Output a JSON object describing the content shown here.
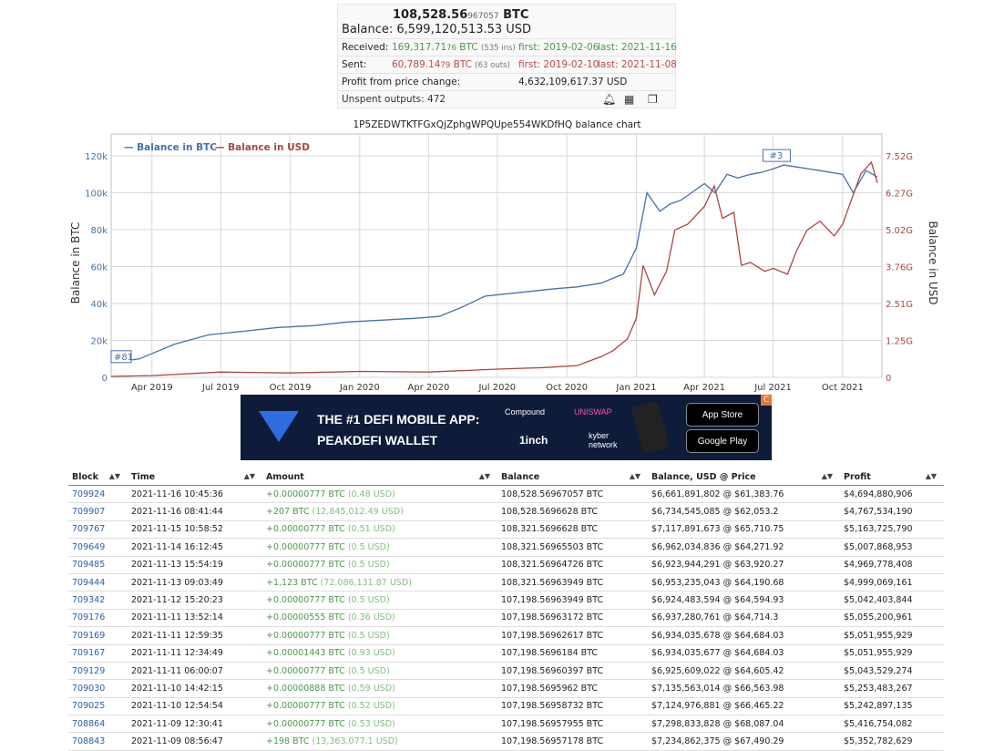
{
  "summary": {
    "balance_btc_main": "108,528.56",
    "balance_btc_dec": "967057",
    "balance_btc_unit": "BTC",
    "balance_usd": "Balance: 6,599,120,513.53 USD",
    "received_label": "Received:",
    "received_main": "169,317.71",
    "received_dec": "76",
    "received_unit": " BTC",
    "received_ins": "(535 ins)",
    "received_first": "first: 2019-02-06",
    "received_last": "last: 2021-11-16",
    "sent_label": "Sent:",
    "sent_main": "60,789.14",
    "sent_dec": "79",
    "sent_unit": " BTC",
    "sent_outs": "(63 outs)",
    "sent_first": "first: 2019-02-10",
    "sent_last": "last: 2021-11-08",
    "profit_label": "Profit from price change:",
    "profit_value": "4,632,109,617.37 USD",
    "unspent": "Unspent outputs: 472",
    "icons": [
      "bell-icon",
      "qr-code-icon",
      "copy-icon"
    ]
  },
  "chart_title": "1P5ZEDWTKTFGxQjZphgWPQUpe554WKDfHQ balance chart",
  "chart_data": {
    "type": "line",
    "legend": [
      "Balance in BTC",
      "Balance in USD"
    ],
    "legend_position": "top-left",
    "ylabel_left": "Balance in BTC",
    "ylabel_right": "Balance in USD",
    "yticks_left": [
      "0",
      "20k",
      "40k",
      "60k",
      "80k",
      "100k",
      "120k"
    ],
    "yticks_right": [
      "0",
      "1.25G",
      "2.51G",
      "3.76G",
      "5.02G",
      "6.27G",
      "7.52G"
    ],
    "xticks": [
      "Apr 2019",
      "Jul 2019",
      "Oct 2019",
      "Jan 2020",
      "Apr 2020",
      "Jul 2020",
      "Oct 2020",
      "Jan 2021",
      "Apr 2021",
      "Jul 2021",
      "Oct 2021"
    ],
    "ylim_left": [
      0,
      120000
    ],
    "ylim_right": [
      0,
      7520000000
    ],
    "flags": [
      "#81",
      "#3"
    ],
    "colors": {
      "btc": "#4572a7",
      "usd": "#aa4643"
    },
    "series": [
      {
        "name": "Balance in BTC",
        "x": [
          "2019-02-06",
          "2019-03-15",
          "2019-05-01",
          "2019-06-15",
          "2019-08-01",
          "2019-09-15",
          "2019-11-01",
          "2019-12-15",
          "2020-02-01",
          "2020-03-15",
          "2020-04-15",
          "2020-05-15",
          "2020-06-15",
          "2020-08-01",
          "2020-09-15",
          "2020-10-15",
          "2020-11-15",
          "2020-12-15",
          "2021-01-01",
          "2021-01-15",
          "2021-02-01",
          "2021-02-15",
          "2021-03-01",
          "2021-03-15",
          "2021-04-01",
          "2021-04-15",
          "2021-05-01",
          "2021-05-15",
          "2021-06-01",
          "2021-06-15",
          "2021-07-01",
          "2021-07-15",
          "2021-08-01",
          "2021-09-01",
          "2021-10-01",
          "2021-10-15",
          "2021-11-01",
          "2021-11-16"
        ],
        "values": [
          8000,
          10000,
          18000,
          23000,
          25000,
          27000,
          28000,
          30000,
          31000,
          32000,
          33000,
          38000,
          44000,
          46000,
          48000,
          49000,
          51000,
          56000,
          70000,
          100000,
          90000,
          94000,
          96000,
          100000,
          105000,
          100000,
          110000,
          108000,
          110000,
          111000,
          113000,
          115000,
          114000,
          112000,
          110000,
          100000,
          112000,
          108528
        ]
      },
      {
        "name": "Balance in USD",
        "x": [
          "2019-02-06",
          "2019-04-01",
          "2019-07-01",
          "2019-10-01",
          "2020-01-01",
          "2020-04-01",
          "2020-07-01",
          "2020-09-01",
          "2020-10-15",
          "2020-11-15",
          "2020-12-01",
          "2020-12-20",
          "2021-01-01",
          "2021-01-10",
          "2021-01-25",
          "2021-02-10",
          "2021-02-21",
          "2021-03-10",
          "2021-04-01",
          "2021-04-14",
          "2021-04-25",
          "2021-05-10",
          "2021-05-20",
          "2021-06-01",
          "2021-06-20",
          "2021-07-01",
          "2021-07-20",
          "2021-08-01",
          "2021-08-15",
          "2021-09-01",
          "2021-09-20",
          "2021-10-01",
          "2021-10-15",
          "2021-10-25",
          "2021-11-08",
          "2021-11-16"
        ],
        "values": [
          30000000,
          60000000,
          180000000,
          150000000,
          200000000,
          180000000,
          280000000,
          330000000,
          400000000,
          700000000,
          900000000,
          1300000000,
          2000000000,
          3800000000,
          2800000000,
          3600000000,
          5000000000,
          5200000000,
          5800000000,
          6500000000,
          5400000000,
          5600000000,
          3800000000,
          3900000000,
          3600000000,
          3700000000,
          3500000000,
          4300000000,
          5000000000,
          5300000000,
          4800000000,
          5200000000,
          6200000000,
          6900000000,
          7300000000,
          6599120513
        ]
      }
    ]
  },
  "ad": {
    "line1": "THE #1 DEFI MOBILE APP:",
    "line2": "PEAKDEFI WALLET",
    "partners": [
      "Compound",
      "UNISWAP",
      "1inch",
      "kyber network"
    ],
    "app_store": "App Store",
    "google_play": "Google Play",
    "close": "C"
  },
  "table": {
    "headers": [
      "Block",
      "Time",
      "Amount",
      "Balance",
      "Balance, USD @ Price",
      "Profit"
    ],
    "rows": [
      {
        "block": "709924",
        "time": "2021-11-16 10:45:36",
        "amount": "+0.00000777 BTC",
        "usd": "(0.48 USD)",
        "balance": "108,528.56967057 BTC",
        "bal_usd": "$6,661,891,802 @ $61,383.76",
        "profit": "$4,694,880,906"
      },
      {
        "block": "709907",
        "time": "2021-11-16 08:41:44",
        "amount": "+207 BTC",
        "usd": "(12,845,012.49 USD)",
        "balance": "108,528.5696628 BTC",
        "bal_usd": "$6,734,545,085 @ $62,053.2",
        "profit": "$4,767,534,190"
      },
      {
        "block": "709767",
        "time": "2021-11-15 10:58:52",
        "amount": "+0.00000777 BTC",
        "usd": "(0.51 USD)",
        "balance": "108,321.5696628 BTC",
        "bal_usd": "$7,117,891,673 @ $65,710.75",
        "profit": "$5,163,725,790"
      },
      {
        "block": "709649",
        "time": "2021-11-14 16:12:45",
        "amount": "+0.00000777 BTC",
        "usd": "(0.5 USD)",
        "balance": "108,321.56965503 BTC",
        "bal_usd": "$6,962,034,836 @ $64,271.92",
        "profit": "$5,007,868,953"
      },
      {
        "block": "709485",
        "time": "2021-11-13 15:54:19",
        "amount": "+0.00000777 BTC",
        "usd": "(0.5 USD)",
        "balance": "108,321.56964726 BTC",
        "bal_usd": "$6,923,944,291 @ $63,920.27",
        "profit": "$4,969,778,408"
      },
      {
        "block": "709444",
        "time": "2021-11-13 09:03:49",
        "amount": "+1,123 BTC",
        "usd": "(72,086,131.87 USD)",
        "balance": "108,321.56963949 BTC",
        "bal_usd": "$6,953,235,043 @ $64,190.68",
        "profit": "$4,999,069,161"
      },
      {
        "block": "709342",
        "time": "2021-11-12 15:20:23",
        "amount": "+0.00000777 BTC",
        "usd": "(0.5 USD)",
        "balance": "107,198.56963949 BTC",
        "bal_usd": "$6,924,483,594 @ $64,594.93",
        "profit": "$5,042,403,844"
      },
      {
        "block": "709176",
        "time": "2021-11-11 13:52:14",
        "amount": "+0.00000555 BTC",
        "usd": "(0.36 USD)",
        "balance": "107,198.56963172 BTC",
        "bal_usd": "$6,937,280,761 @ $64,714.3",
        "profit": "$5,055,200,961"
      },
      {
        "block": "709169",
        "time": "2021-11-11 12:59:35",
        "amount": "+0.00000777 BTC",
        "usd": "(0.5 USD)",
        "balance": "107,198.56962617 BTC",
        "bal_usd": "$6,934,035,678 @ $64,684.03",
        "profit": "$5,051,955,929"
      },
      {
        "block": "709167",
        "time": "2021-11-11 12:34:49",
        "amount": "+0.00001443 BTC",
        "usd": "(0.93 USD)",
        "balance": "107,198.5696184 BTC",
        "bal_usd": "$6,934,035,677 @ $64,684.03",
        "profit": "$5,051,955,929"
      },
      {
        "block": "709129",
        "time": "2021-11-11 06:00:07",
        "amount": "+0.00000777 BTC",
        "usd": "(0.5 USD)",
        "balance": "107,198.56960397 BTC",
        "bal_usd": "$6,925,609,022 @ $64,605.42",
        "profit": "$5,043,529,274"
      },
      {
        "block": "709030",
        "time": "2021-11-10 14:42:15",
        "amount": "+0.00000888 BTC",
        "usd": "(0.59 USD)",
        "balance": "107,198.5695962 BTC",
        "bal_usd": "$7,135,563,014 @ $66,563.98",
        "profit": "$5,253,483,267"
      },
      {
        "block": "709025",
        "time": "2021-11-10 12:54:54",
        "amount": "+0.00000777 BTC",
        "usd": "(0.52 USD)",
        "balance": "107,198.56958732 BTC",
        "bal_usd": "$7,124,976,881 @ $66,465.22",
        "profit": "$5,242,897,135"
      },
      {
        "block": "708864",
        "time": "2021-11-09 12:30:41",
        "amount": "+0.00000777 BTC",
        "usd": "(0.53 USD)",
        "balance": "107,198.56957955 BTC",
        "bal_usd": "$7,298,833,828 @ $68,087.04",
        "profit": "$5,416,754,082"
      },
      {
        "block": "708843",
        "time": "2021-11-09 08:56:47",
        "amount": "+198 BTC",
        "usd": "(13,363,077.1 USD)",
        "balance": "107,198.56957178 BTC",
        "bal_usd": "$7,234,862,375 @ $67,490.29",
        "profit": "$5,352,782,629"
      }
    ]
  }
}
